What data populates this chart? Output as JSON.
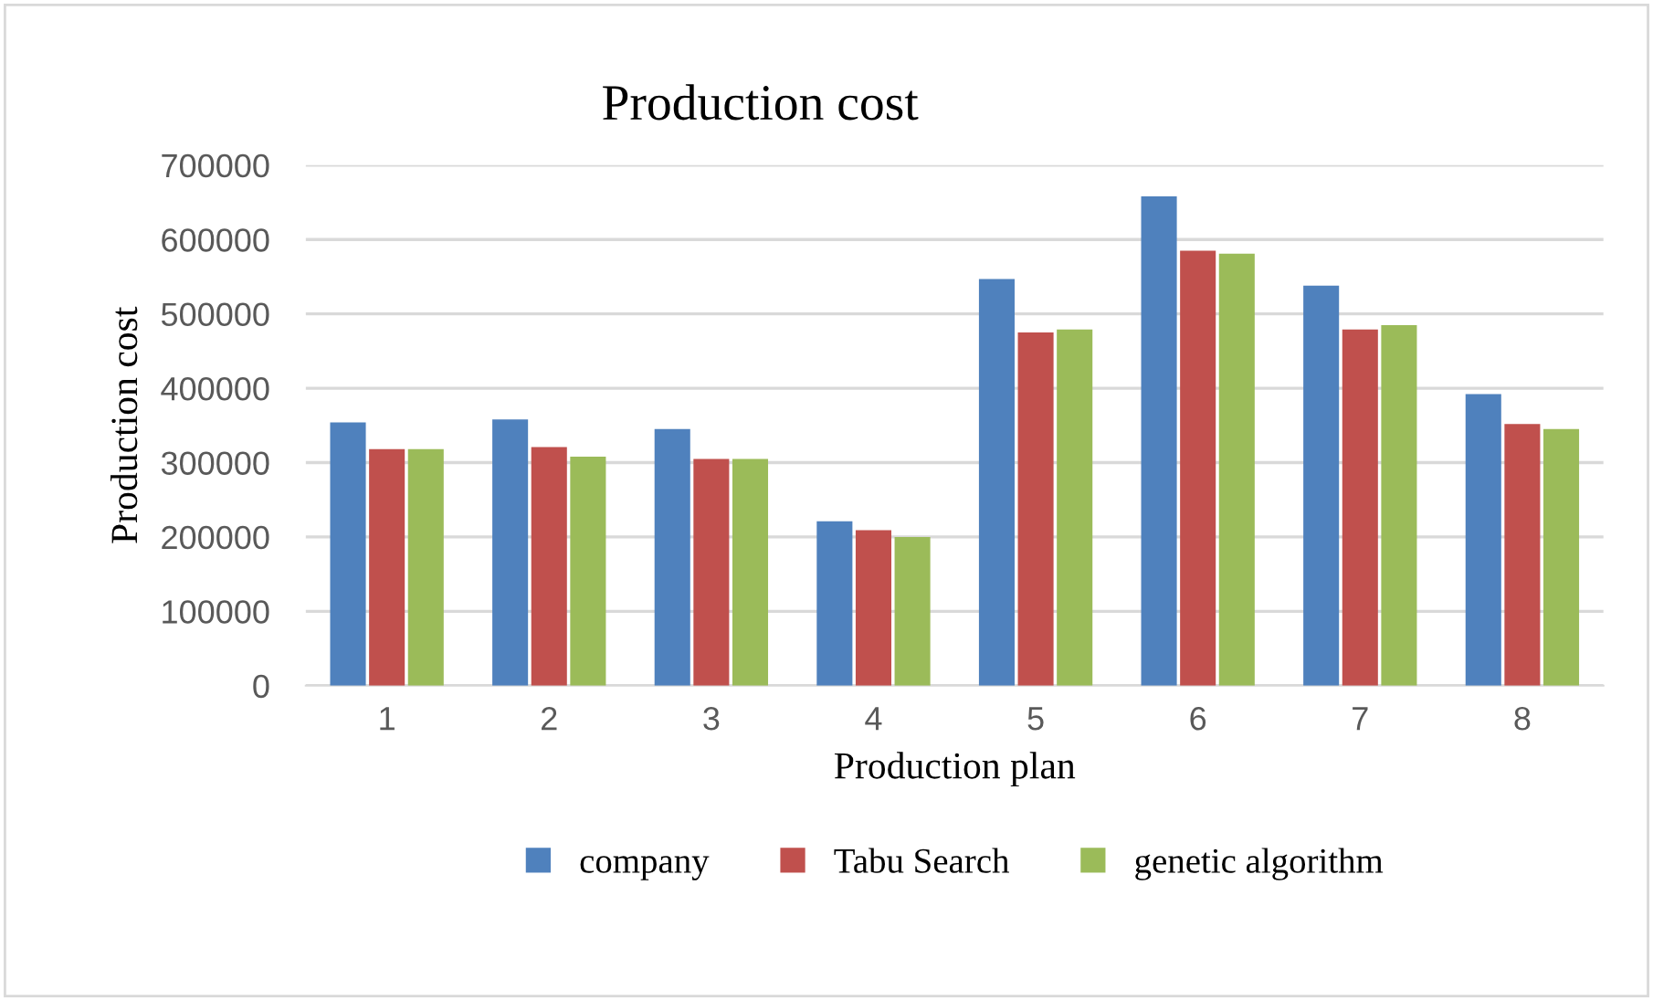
{
  "chart_data": {
    "type": "bar",
    "title": "Production cost",
    "xlabel": "Production plan",
    "ylabel": "Production cost",
    "categories": [
      "1",
      "2",
      "3",
      "4",
      "5",
      "6",
      "7",
      "8"
    ],
    "series": [
      {
        "name": "company",
        "color": "#4f81bd",
        "values": [
          354000,
          358000,
          345000,
          221000,
          547000,
          658000,
          538000,
          392000
        ]
      },
      {
        "name": "Tabu Search",
        "color": "#c0504d",
        "values": [
          318000,
          321000,
          305000,
          209000,
          475000,
          585000,
          479000,
          352000
        ]
      },
      {
        "name": "genetic algorithm",
        "color": "#9bbb59",
        "values": [
          318000,
          308000,
          305000,
          200000,
          479000,
          581000,
          485000,
          345000
        ]
      }
    ],
    "ylim": [
      0,
      700000
    ],
    "yticks": [
      0,
      100000,
      200000,
      300000,
      400000,
      500000,
      600000,
      700000
    ],
    "grid": "y",
    "legend": "bottom"
  }
}
